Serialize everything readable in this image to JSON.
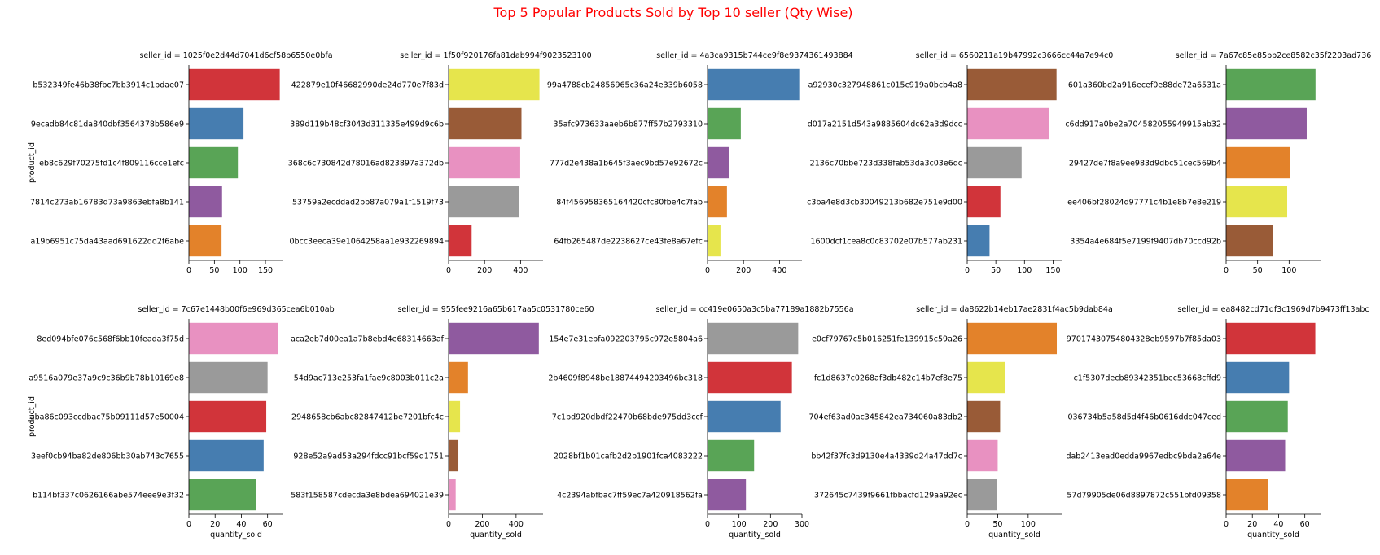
{
  "figure": {
    "title": "Top 5 Popular Products Sold by Top 10 seller (Qty Wise)",
    "title_color": "#ff0000",
    "ylabel": "product_id",
    "xlabel": "quantity_sold"
  },
  "palette": {
    "red": "#d1343a",
    "blue": "#467db0",
    "green": "#59a456",
    "purple": "#8f5a9f",
    "orange": "#e3822a",
    "yellow": "#e6e54c",
    "brown": "#995b37",
    "pink": "#e891c1",
    "gray": "#9a9a9a"
  },
  "chart_data": [
    {
      "type": "bar",
      "orientation": "horizontal",
      "title": "seller_id = 1025f0e2d44d7041d6cf58b6550e0bfa",
      "xlim": [
        0,
        185
      ],
      "xticks": [
        0,
        50,
        100,
        150
      ],
      "categories": [
        "b532349fe46b38fbc7bb3914c1bdae07",
        "9ecadb84c81da840dbf3564378b586e9",
        "eb8c629f70275fd1c4f809116cce1efc",
        "7814c273ab16783d73a9863ebfa8b141",
        "a19b6951c75da43aad691622dd2f6abe"
      ],
      "values": [
        178,
        107,
        96,
        65,
        64
      ],
      "colors": [
        "red",
        "blue",
        "green",
        "purple",
        "orange"
      ]
    },
    {
      "type": "bar",
      "orientation": "horizontal",
      "title": "seller_id = 1f50f920176fa81dab994f9023523100",
      "xlim": [
        0,
        525
      ],
      "xticks": [
        0,
        200,
        400
      ],
      "categories": [
        "422879e10f46682990de24d770e7f83d",
        "389d119b48cf3043d311335e499d9c6b",
        "368c6c730842d78016ad823897a372db",
        "53759a2ecddad2bb87a079a1f1519f73",
        "0bcc3eeca39e1064258aa1e932269894"
      ],
      "values": [
        505,
        405,
        398,
        393,
        128
      ],
      "colors": [
        "yellow",
        "brown",
        "pink",
        "gray",
        "red"
      ]
    },
    {
      "type": "bar",
      "orientation": "horizontal",
      "title": "seller_id = 4a3ca9315b744ce9f8e9374361493884",
      "xlim": [
        0,
        525
      ],
      "xticks": [
        0,
        200,
        400
      ],
      "categories": [
        "99a4788cb24856965c36a24e339b6058",
        "35afc973633aaeb6b877ff57b2793310",
        "777d2e438a1b645f3aec9bd57e92672c",
        "84f456958365164420cfc80fbe4c7fab",
        "64fb265487de2238627ce43fe8a67efc"
      ],
      "values": [
        510,
        185,
        118,
        108,
        72
      ],
      "colors": [
        "blue",
        "green",
        "purple",
        "orange",
        "yellow"
      ]
    },
    {
      "type": "bar",
      "orientation": "horizontal",
      "title": "seller_id = 6560211a19b47992c3666cc44a7e94c0",
      "xlim": [
        0,
        165
      ],
      "xticks": [
        0,
        50,
        100,
        150
      ],
      "categories": [
        "a92930c327948861c015c919a0bcb4a8",
        "d017a2151d543a9885604dc62a3d9dcc",
        "2136c70bbe723d338fab53da3c03e6dc",
        "c3ba4e8d3cb30049213b682e751e9d00",
        "1600dcf1cea8c0c83702e07b577ab231"
      ],
      "values": [
        156,
        143,
        95,
        58,
        39
      ],
      "colors": [
        "brown",
        "pink",
        "gray",
        "red",
        "blue"
      ]
    },
    {
      "type": "bar",
      "orientation": "horizontal",
      "title": "seller_id = 7a67c85e85bb2ce8582c35f2203ad736",
      "xlim": [
        0,
        150
      ],
      "xticks": [
        0,
        50,
        100
      ],
      "categories": [
        "601a360bd2a916ecef0e88de72a6531a",
        "c6dd917a0be2a704582055949915ab32",
        "29427de7f8a9ee983d9dbc51cec569b4",
        "ee406bf28024d97771c4b1e8b7e8e219",
        "3354a4e684f5e7199f9407db70ccd92b"
      ],
      "values": [
        142,
        128,
        101,
        97,
        75
      ],
      "colors": [
        "green",
        "purple",
        "orange",
        "yellow",
        "brown"
      ]
    },
    {
      "type": "bar",
      "orientation": "horizontal",
      "title": "seller_id = 7c67e1448b00f6e969d365cea6b010ab",
      "xlim": [
        0,
        72
      ],
      "xticks": [
        0,
        20,
        40,
        60
      ],
      "categories": [
        "8ed094bfe076c568f6bb10feada3f75d",
        "a9516a079e37a9c9c36b9b78b10169e8",
        "aba86c093ccdbac75b09111d57e50004",
        "3eef0cb94ba82de806bb30ab743c7655",
        "b114bf337c0626166abe574eee9e3f32"
      ],
      "values": [
        68,
        60,
        59,
        57,
        51
      ],
      "colors": [
        "pink",
        "gray",
        "red",
        "blue",
        "green"
      ]
    },
    {
      "type": "bar",
      "orientation": "horizontal",
      "title": "seller_id = 955fee9216a65b617aa5c0531780ce60",
      "xlim": [
        0,
        560
      ],
      "xticks": [
        0,
        200,
        400
      ],
      "categories": [
        "aca2eb7d00ea1a7b8ebd4e68314663af",
        "54d9ac713e253fa1fae9c8003b011c2a",
        "2948658cb6abc82847412be7201bfc4c",
        "928e52a9ad53a294fdcc91bcf59d1751",
        "583f158587cdecda3e8bdea694021e39"
      ],
      "values": [
        535,
        115,
        68,
        58,
        42
      ],
      "colors": [
        "purple",
        "orange",
        "yellow",
        "brown",
        "pink"
      ]
    },
    {
      "type": "bar",
      "orientation": "horizontal",
      "title": "seller_id = cc419e0650a3c5ba77189a1882b7556a",
      "xlim": [
        0,
        300
      ],
      "xticks": [
        0,
        100,
        200,
        300
      ],
      "categories": [
        "154e7e31ebfa092203795c972e5804a6",
        "2b4609f8948be18874494203496bc318",
        "7c1bd920dbdf22470b68bde975dd3ccf",
        "2028bf1b01cafb2d2b1901fca4083222",
        "4c2394abfbac7ff59ec7a420918562fa"
      ],
      "values": [
        288,
        268,
        232,
        148,
        122
      ],
      "colors": [
        "gray",
        "red",
        "blue",
        "green",
        "purple"
      ]
    },
    {
      "type": "bar",
      "orientation": "horizontal",
      "title": "seller_id = da8622b14eb17ae2831f4ac5b9dab84a",
      "xlim": [
        0,
        155
      ],
      "xticks": [
        0,
        50,
        100
      ],
      "categories": [
        "e0cf79767c5b016251fe139915c59a26",
        "fc1d8637c0268af3db482c14b7ef8e75",
        "704ef63ad0ac345842ea734060a83db2",
        "bb42f37fc3d9130e4a4339d24a47dd7c",
        "372645c7439f9661fbbacfd129aa92ec"
      ],
      "values": [
        147,
        62,
        54,
        50,
        49
      ],
      "colors": [
        "orange",
        "yellow",
        "brown",
        "pink",
        "gray"
      ]
    },
    {
      "type": "bar",
      "orientation": "horizontal",
      "title": "seller_id = ea8482cd71df3c1969d7b9473ff13abc",
      "xlim": [
        0,
        72
      ],
      "xticks": [
        0,
        20,
        40,
        60
      ],
      "categories": [
        "97017430754804328eb9597b7f85da03",
        "c1f5307decb89342351bec53668cffd9",
        "036734b5a58d5d4f46b0616ddc047ced",
        "dab2413ead0edda9967edbc9bda2a64e",
        "57d79905de06d8897872c551bfd09358"
      ],
      "values": [
        68,
        48,
        47,
        45,
        32
      ],
      "colors": [
        "red",
        "blue",
        "green",
        "purple",
        "orange"
      ]
    }
  ]
}
